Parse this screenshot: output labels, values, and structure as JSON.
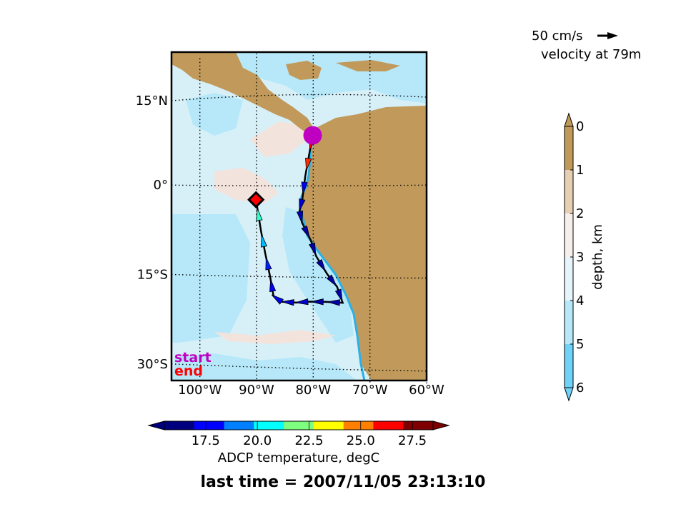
{
  "chart_data": [
    {
      "type": "map",
      "map": {
        "lon_range": [
          -105,
          -60
        ],
        "lat_range": [
          -32,
          22
        ],
        "lon_ticks": [
          {
            "value": -100,
            "label": "100°W"
          },
          {
            "value": -90,
            "label": "90°W"
          },
          {
            "value": -80,
            "label": "80°W"
          },
          {
            "value": -70,
            "label": "70°W"
          },
          {
            "value": -60,
            "label": "60°W"
          }
        ],
        "lat_ticks": [
          {
            "value": 15,
            "label": "15°N"
          },
          {
            "value": 0,
            "label": "0°"
          },
          {
            "value": -15,
            "label": "15°S"
          },
          {
            "value": -30,
            "label": "30°S"
          }
        ],
        "grid": true,
        "start_label": "start",
        "end_label": "end",
        "start_point": {
          "lon": -80.1,
          "lat": 8.3,
          "color": "#c000c0"
        },
        "end_point": {
          "lon": -90.1,
          "lat": -2.3,
          "color": "#ff0000"
        },
        "track": [
          {
            "lon": -80.1,
            "lat": 8.3,
            "t": 26.8
          },
          {
            "lon": -80.6,
            "lat": 5.8,
            "t": 27.0
          },
          {
            "lon": -81.4,
            "lat": 1.6,
            "t": 26.3
          },
          {
            "lon": -81.9,
            "lat": -2.0,
            "t": 17.0
          },
          {
            "lon": -82.4,
            "lat": -4.0,
            "t": 16.5
          },
          {
            "lon": -82.0,
            "lat": -6.0,
            "t": 16.2
          },
          {
            "lon": -80.4,
            "lat": -9.0,
            "t": 16.0
          },
          {
            "lon": -79.5,
            "lat": -11.5,
            "t": 16.0
          },
          {
            "lon": -77.5,
            "lat": -14.5,
            "t": 16.0
          },
          {
            "lon": -75.8,
            "lat": -16.5,
            "t": 16.0
          },
          {
            "lon": -74.8,
            "lat": -19.1,
            "t": 16.0
          },
          {
            "lon": -77.6,
            "lat": -19.0,
            "t": 16.0
          },
          {
            "lon": -80.6,
            "lat": -19.0,
            "t": 16.0
          },
          {
            "lon": -83.0,
            "lat": -19.2,
            "t": 16.5
          },
          {
            "lon": -85.6,
            "lat": -19.1,
            "t": 16.5
          },
          {
            "lon": -87.0,
            "lat": -18.2,
            "t": 17.0
          },
          {
            "lon": -87.6,
            "lat": -15.0,
            "t": 17.0
          },
          {
            "lon": -88.5,
            "lat": -11.0,
            "t": 17.5
          },
          {
            "lon": -89.2,
            "lat": -7.5,
            "t": 19.5
          },
          {
            "lon": -90.1,
            "lat": -2.3,
            "t": 21.0
          }
        ]
      },
      "velocity_key": {
        "label": "50 cm/s",
        "caption": "velocity at 79m"
      },
      "depth_colorbar": {
        "label": "depth, km",
        "ticks": [
          "0",
          "1",
          "2",
          "3",
          "4",
          "5",
          "6"
        ],
        "range": [
          0,
          6
        ],
        "colors": [
          "#c19a5b",
          "#e6cfb3",
          "#f7efec",
          "#e6f5fb",
          "#b6e8f9",
          "#6fd3f7"
        ]
      },
      "temperature_colorbar": {
        "label": "ADCP temperature, degC",
        "ticks": [
          "17.5",
          "20.0",
          "22.5",
          "25.0",
          "27.5"
        ],
        "range": [
          15.5,
          28.5
        ],
        "colors": [
          "#00007f",
          "#0000ff",
          "#007fff",
          "#00ffff",
          "#7fff7f",
          "#ffff00",
          "#ff7f00",
          "#ff0000",
          "#7f0000"
        ]
      },
      "footer": "last time = 2007/11/05 23:13:10"
    }
  ]
}
